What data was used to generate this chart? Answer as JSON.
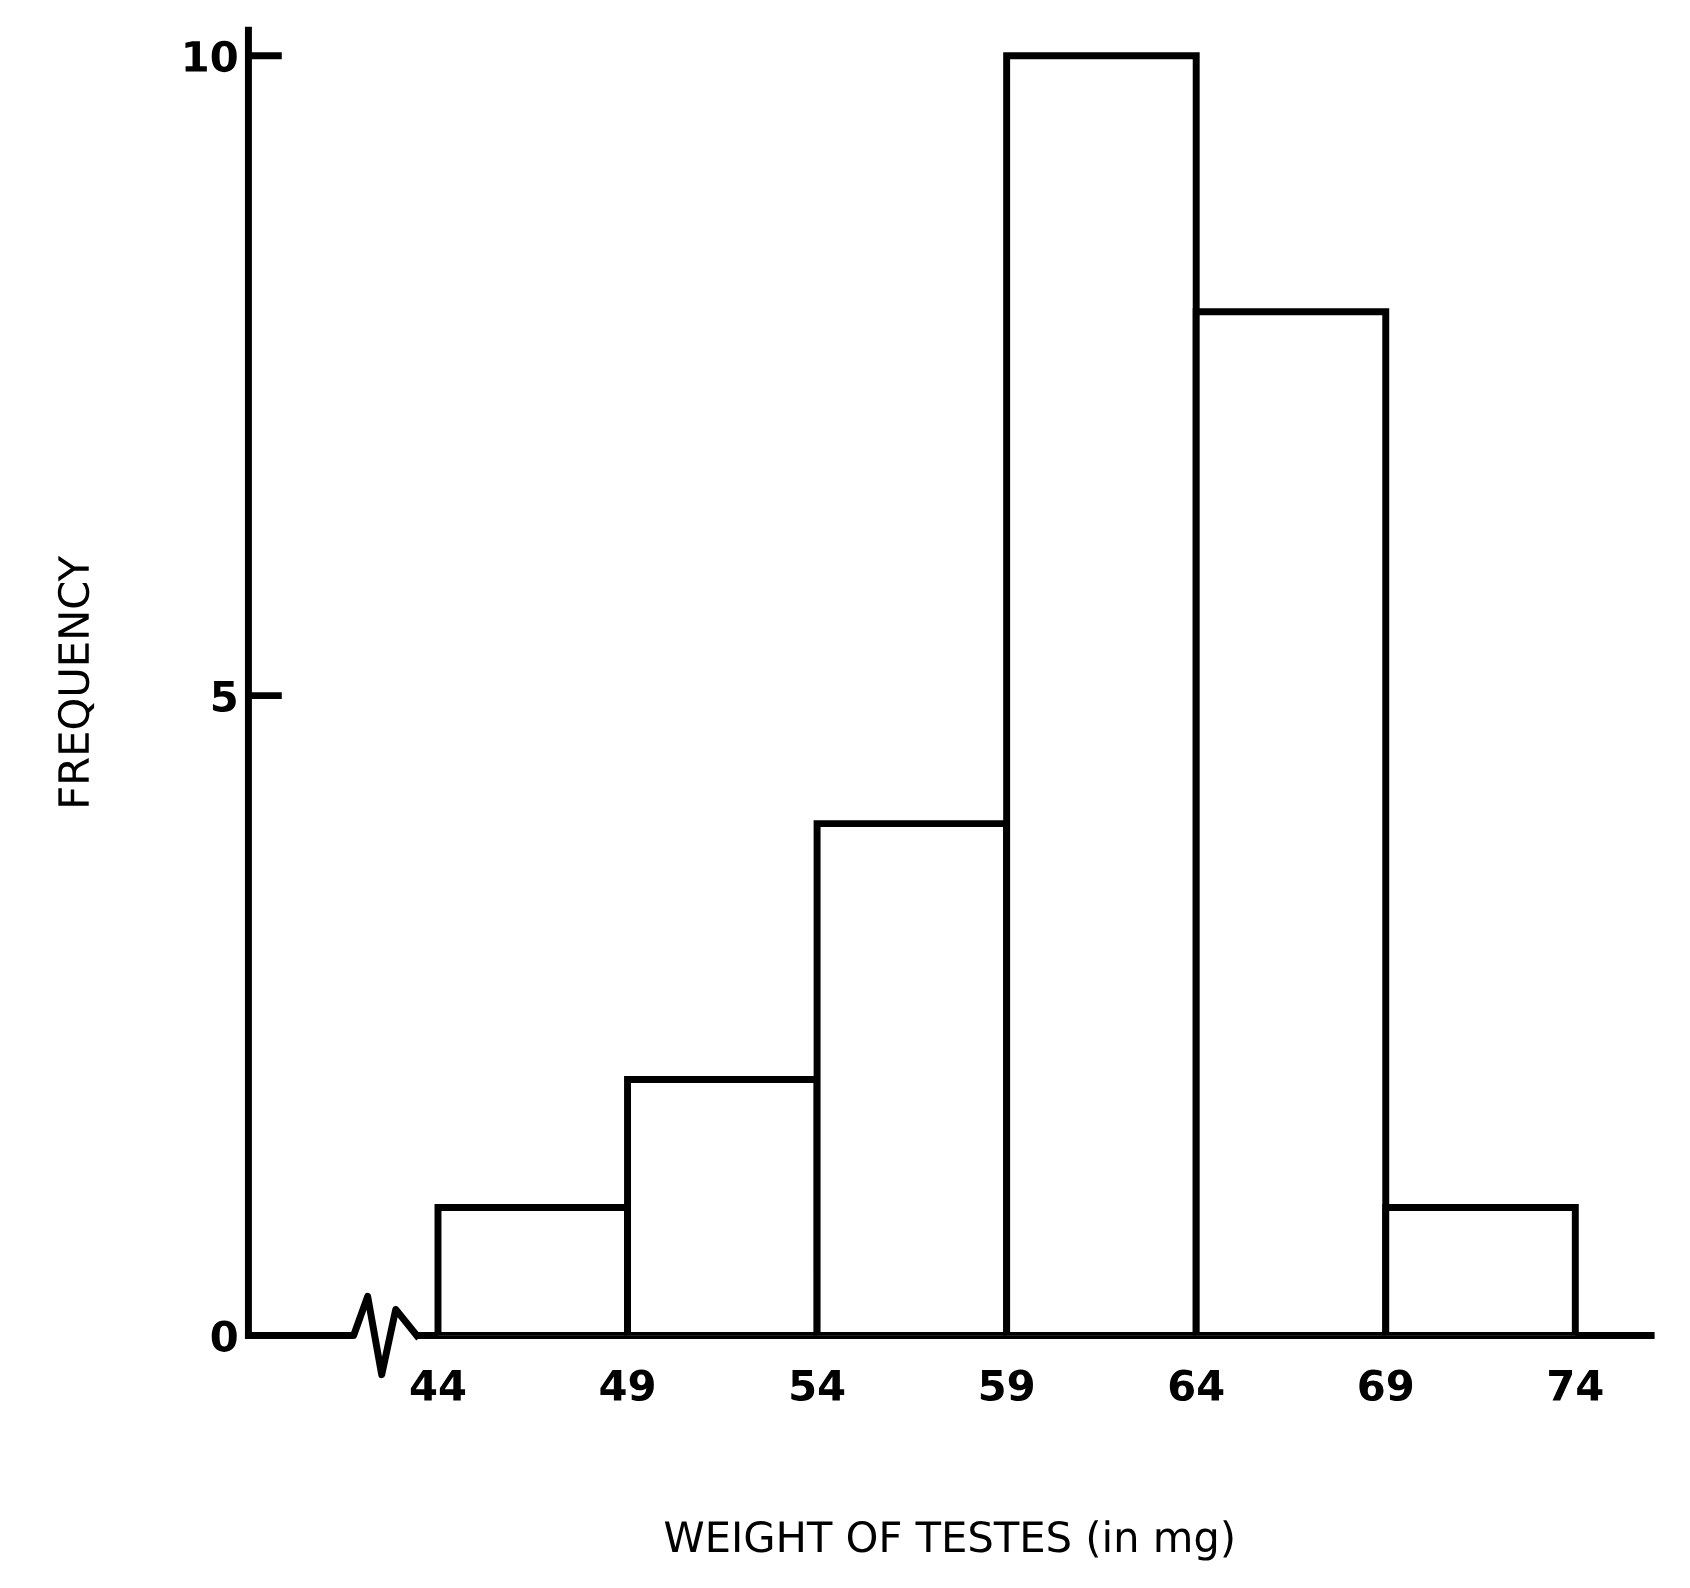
{
  "chart_data": {
    "type": "histogram",
    "xlabel": "WEIGHT OF TESTES (in mg)",
    "ylabel": "FREQUENCY",
    "bins": [
      44,
      49,
      54,
      59,
      64,
      69,
      74
    ],
    "values": [
      1,
      2,
      4,
      10,
      8,
      1
    ],
    "color": "#ffffff",
    "xlim": [
      39,
      76
    ],
    "xticks": [
      44,
      49,
      54,
      59,
      64,
      69,
      74
    ],
    "ylim": [
      0,
      10.2
    ],
    "yticks": [
      0,
      5,
      10
    ],
    "grid": false
  }
}
